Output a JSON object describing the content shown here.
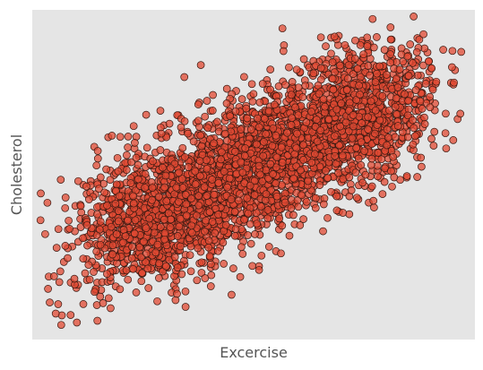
{
  "chart_data": {
    "type": "scatter",
    "title": "",
    "xlabel": "Excercise",
    "ylabel": "Cholesterol",
    "xticks": [],
    "yticks": [],
    "grid": false,
    "legend": "none",
    "colors": {
      "background": "#E5E5E5",
      "point_fill": "#E24A33",
      "point_edge": "#3A1A12"
    },
    "xlim": [
      0,
      100
    ],
    "ylim": [
      0,
      100
    ],
    "series": [
      {
        "clusters": [
          {
            "n": 1200,
            "center_x": 28,
            "center_y": 37,
            "sd_x": 10,
            "sd_y": 11,
            "correlation": 0.35
          },
          {
            "n": 1200,
            "center_x": 50,
            "center_y": 52,
            "sd_x": 10,
            "sd_y": 11,
            "correlation": 0.35
          },
          {
            "n": 1200,
            "center_x": 72,
            "center_y": 67,
            "sd_x": 10,
            "sd_y": 11,
            "correlation": 0.35
          }
        ]
      }
    ]
  }
}
